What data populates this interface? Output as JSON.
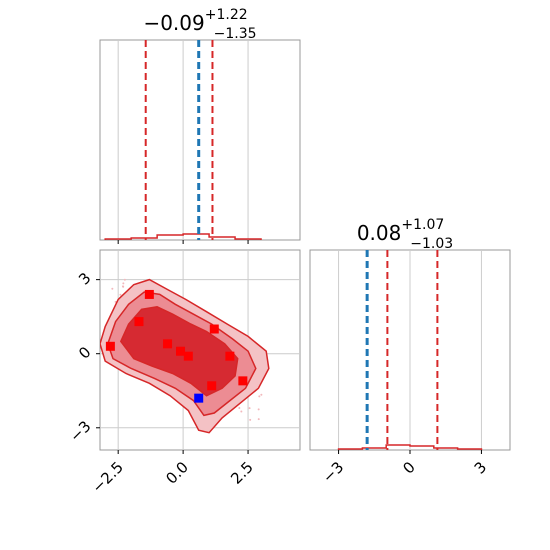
{
  "chart_data": [
    {
      "type": "histogram",
      "panel": "top-left",
      "title_value": "−0.09",
      "title_plus": "+1.22",
      "title_minus": "−1.35",
      "xlim": [
        -3.2,
        4.5
      ],
      "xticks": [
        -2.5,
        0.0,
        2.5
      ],
      "grid": true,
      "hist_x": [
        -2.5,
        -1.5,
        -0.5,
        0.5,
        1.5,
        2.5
      ],
      "hist_y": [
        0.01,
        0.02,
        0.05,
        0.06,
        0.03,
        0.01
      ],
      "quantile_lines": [
        -1.44,
        1.13
      ],
      "truth_line": 0.6
    },
    {
      "type": "scatter",
      "panel": "bottom-left",
      "xlim": [
        -3.2,
        4.5
      ],
      "ylim": [
        -3.9,
        4.2
      ],
      "xticks": [
        -2.5,
        0.0,
        2.5
      ],
      "yticks": [
        -3,
        0,
        3
      ],
      "xticklabels": [
        "−2.5",
        "0.0",
        "2.5"
      ],
      "yticklabels": [
        "−3",
        "0",
        "3"
      ],
      "grid": true,
      "contour_outer": [
        [
          -3.2,
          0.4
        ],
        [
          -3.0,
          1.1
        ],
        [
          -2.5,
          2.2
        ],
        [
          -1.9,
          2.8
        ],
        [
          -1.3,
          3.0
        ],
        [
          -0.6,
          2.6
        ],
        [
          0.1,
          2.2
        ],
        [
          0.9,
          1.7
        ],
        [
          1.7,
          1.2
        ],
        [
          2.5,
          0.7
        ],
        [
          3.2,
          0.1
        ],
        [
          3.3,
          -0.6
        ],
        [
          2.9,
          -1.4
        ],
        [
          2.2,
          -2.0
        ],
        [
          1.5,
          -2.6
        ],
        [
          1.0,
          -3.2
        ],
        [
          0.6,
          -3.1
        ],
        [
          0.2,
          -2.3
        ],
        [
          -0.5,
          -1.7
        ],
        [
          -1.3,
          -1.2
        ],
        [
          -2.2,
          -0.8
        ],
        [
          -3.0,
          -0.3
        ]
      ],
      "contour_mid": [
        [
          -2.9,
          0.4
        ],
        [
          -2.6,
          1.3
        ],
        [
          -2.1,
          2.0
        ],
        [
          -1.5,
          2.5
        ],
        [
          -0.9,
          2.4
        ],
        [
          -0.3,
          2.0
        ],
        [
          0.4,
          1.6
        ],
        [
          1.1,
          1.2
        ],
        [
          1.9,
          0.6
        ],
        [
          2.5,
          0.1
        ],
        [
          2.8,
          -0.6
        ],
        [
          2.4,
          -1.4
        ],
        [
          1.8,
          -1.9
        ],
        [
          1.2,
          -2.4
        ],
        [
          0.8,
          -2.5
        ],
        [
          0.4,
          -1.9
        ],
        [
          -0.3,
          -1.4
        ],
        [
          -1.1,
          -1.0
        ],
        [
          -2.0,
          -0.6
        ],
        [
          -2.7,
          -0.2
        ]
      ],
      "contour_inner": [
        [
          -2.4,
          0.5
        ],
        [
          -2.1,
          1.2
        ],
        [
          -1.6,
          1.8
        ],
        [
          -1.0,
          1.9
        ],
        [
          -0.4,
          1.6
        ],
        [
          0.3,
          1.2
        ],
        [
          0.9,
          0.9
        ],
        [
          1.6,
          0.4
        ],
        [
          2.1,
          -0.2
        ],
        [
          2.0,
          -0.9
        ],
        [
          1.5,
          -1.4
        ],
        [
          0.9,
          -1.7
        ],
        [
          0.3,
          -1.2
        ],
        [
          -0.4,
          -0.8
        ],
        [
          -1.2,
          -0.5
        ],
        [
          -1.9,
          -0.2
        ]
      ],
      "red_markers": [
        [
          -2.8,
          0.3
        ],
        [
          -1.7,
          1.3
        ],
        [
          -1.3,
          2.4
        ],
        [
          -0.6,
          0.4
        ],
        [
          -0.1,
          0.1
        ],
        [
          0.2,
          -0.1
        ],
        [
          1.2,
          1.0
        ],
        [
          1.8,
          -0.1
        ],
        [
          2.3,
          -1.1
        ],
        [
          1.1,
          -1.3
        ]
      ],
      "blue_marker": [
        0.6,
        -1.8
      ]
    },
    {
      "type": "histogram",
      "panel": "bottom-right",
      "title_value": "0.08",
      "title_plus": "+1.07",
      "title_minus": "−1.03",
      "xlim": [
        -4.2,
        4.2
      ],
      "xticks": [
        -3,
        0,
        3
      ],
      "xticklabels": [
        "−3",
        "0",
        "3"
      ],
      "grid": true,
      "hist_x": [
        -2.5,
        -1.5,
        -0.5,
        0.5,
        1.5,
        2.5
      ],
      "hist_y": [
        0.01,
        0.02,
        0.05,
        0.04,
        0.02,
        0.01
      ],
      "quantile_lines": [
        -0.95,
        1.15
      ],
      "truth_line": -1.8
    }
  ]
}
